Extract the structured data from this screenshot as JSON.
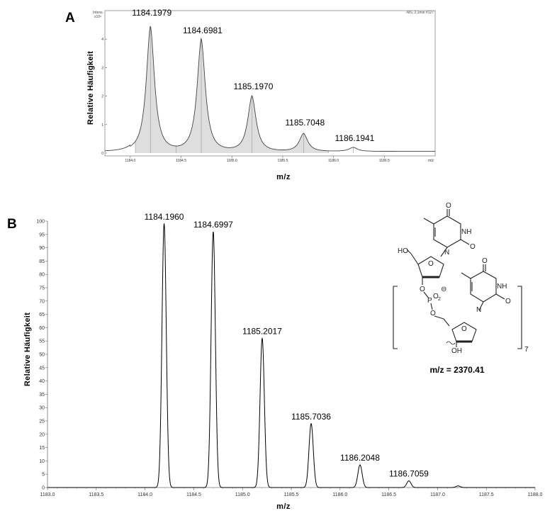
{
  "chart_data": [
    {
      "panel": "A",
      "type": "line",
      "ylabel": "Relative Häufigkeit",
      "xlabel": "m/z",
      "corner_left_line1": "Intens.",
      "corner_left_line2": "x10⁶",
      "corner_right": "-MS, 2.1min #127",
      "axis_unit_label": "m/z",
      "xlim": [
        1183.75,
        1187.0
      ],
      "ylim": [
        0,
        5
      ],
      "x_ticks": [
        1184.0,
        1184.5,
        1185.0,
        1185.5,
        1186.0,
        1186.5
      ],
      "x_tick_labels": [
        "1184.0",
        "1184.5",
        "1185.0",
        "1185.5",
        "1186.0",
        "1186.5"
      ],
      "y_ticks": [
        0,
        1,
        2,
        3,
        4
      ],
      "y_tick_labels": [
        "0",
        "1",
        "2",
        "3",
        "4"
      ],
      "peak_width": 0.06,
      "baseline": 0.06,
      "peaks": [
        {
          "x": 1184.1979,
          "y": 4.4,
          "label": "1184.1979"
        },
        {
          "x": 1184.6981,
          "y": 3.95,
          "label": "1184.6981"
        },
        {
          "x": 1185.197,
          "y": 1.95,
          "label": "1185.1970"
        },
        {
          "x": 1185.7048,
          "y": 0.63,
          "label": "1185.7048"
        },
        {
          "x": 1186.1941,
          "y": 0.14,
          "label": "1186.1941"
        }
      ]
    },
    {
      "panel": "B",
      "type": "line",
      "ylabel": "Relative Häufigkeit",
      "xlabel": "m/z",
      "xlim": [
        1183.0,
        1188.0
      ],
      "ylim": [
        0,
        100
      ],
      "x_ticks": [
        1183.0,
        1183.5,
        1184.0,
        1184.5,
        1185.0,
        1185.5,
        1186.0,
        1186.5,
        1187.0,
        1187.5,
        1188.0
      ],
      "x_tick_labels": [
        "1183.0",
        "1183.5",
        "1184.0",
        "1184.5",
        "1185.0",
        "1185.5",
        "1186.0",
        "1186.5",
        "1187.0",
        "1187.5",
        "1188.0"
      ],
      "y_ticks": [
        0,
        5,
        10,
        15,
        20,
        25,
        30,
        35,
        40,
        45,
        50,
        55,
        60,
        65,
        70,
        75,
        80,
        85,
        90,
        95,
        100
      ],
      "y_tick_labels": [
        "0",
        "5",
        "10",
        "15",
        "20",
        "25",
        "30",
        "35",
        "40",
        "45",
        "50",
        "55",
        "60",
        "65",
        "70",
        "75",
        "80",
        "85",
        "90",
        "95",
        "100"
      ],
      "peak_width": 0.022,
      "peaks": [
        {
          "x": 1184.196,
          "y": 99,
          "label": "1184.1960"
        },
        {
          "x": 1184.6997,
          "y": 96,
          "label": "1184.6997"
        },
        {
          "x": 1185.2017,
          "y": 56,
          "label": "1185.2017"
        },
        {
          "x": 1185.7036,
          "y": 24,
          "label": "1185.7036"
        },
        {
          "x": 1186.2048,
          "y": 8.5,
          "label": "1186.2048"
        },
        {
          "x": 1186.7059,
          "y": 2.5,
          "label": "1186.7059"
        },
        {
          "x": 1187.21,
          "y": 0.6,
          "label": ""
        }
      ]
    }
  ],
  "structure": {
    "labels": {
      "ho": "HO",
      "nh_top": "NH",
      "o_top": "O",
      "o_top_side": "O",
      "n_top": "N",
      "o_ring_top": "O",
      "o_link": "O",
      "p": "P",
      "o2": "O",
      "o2_sub": "2",
      "charge": "⊖",
      "o_link2": "O",
      "nh_bottom": "NH",
      "o_bottom": "O",
      "o_bottom_side": "O",
      "n_bottom": "N",
      "o_ring_bottom": "O",
      "oh": "OH",
      "repeat": "7"
    },
    "mz_total": "m/z = 2370.41"
  }
}
